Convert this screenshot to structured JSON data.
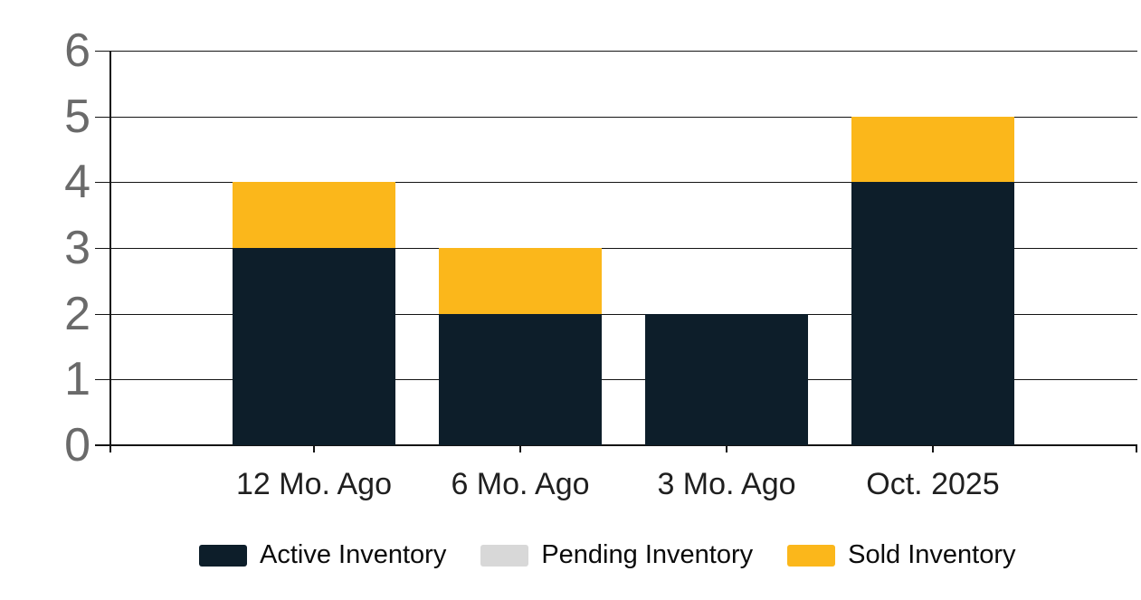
{
  "chart_data": {
    "type": "bar",
    "stacked": true,
    "title": "",
    "xlabel": "",
    "ylabel": "",
    "categories": [
      "12 Mo. Ago",
      "6 Mo. Ago",
      "3 Mo. Ago",
      "Oct. 2025"
    ],
    "series": [
      {
        "name": "Active Inventory",
        "color": "#0d1e2a",
        "values": [
          3,
          2,
          2,
          4
        ]
      },
      {
        "name": "Pending Inventory",
        "color": "#d8d8d8",
        "values": [
          0,
          0,
          0,
          0
        ]
      },
      {
        "name": "Sold Inventory",
        "color": "#fbb71b",
        "values": [
          1,
          1,
          0,
          1
        ]
      }
    ],
    "totals": [
      4,
      3,
      2,
      5
    ],
    "ylim": [
      0,
      6
    ],
    "yticks": [
      0,
      1,
      2,
      3,
      4,
      5,
      6
    ],
    "grid": true,
    "legend_position": "bottom"
  },
  "colors": {
    "background": "#ffffff",
    "axis_line": "#141414",
    "gridline": "#141414",
    "y_tick_label": "#6a6a6a",
    "x_tick_label": "#1f1f1f",
    "legend_text": "#0a0a0a"
  }
}
